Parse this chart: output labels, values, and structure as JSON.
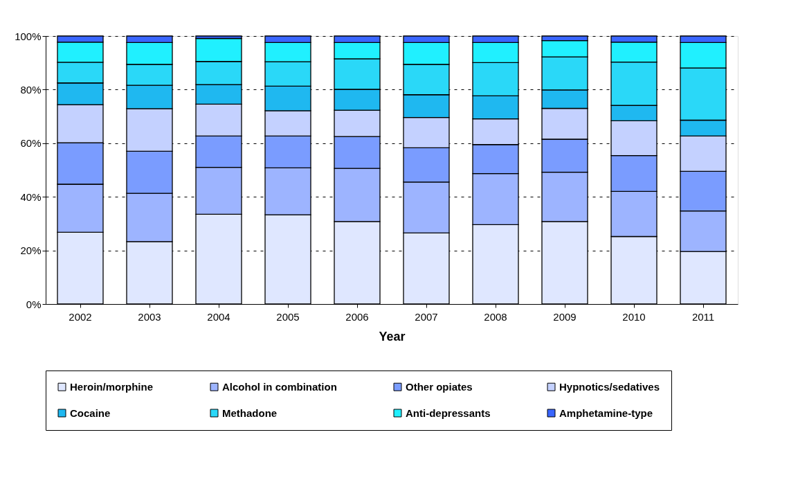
{
  "chart_data": {
    "type": "bar",
    "stacked": true,
    "xlabel": "Year",
    "categories": [
      "2002",
      "2003",
      "2004",
      "2005",
      "2006",
      "2007",
      "2008",
      "2009",
      "2010",
      "2011"
    ],
    "series": [
      {
        "name": "Heroin/morphine",
        "color": "#dfe7ff",
        "values": [
          26.8,
          23.3,
          33.5,
          33.3,
          30.8,
          26.5,
          29.6,
          30.8,
          25.2,
          19.6
        ]
      },
      {
        "name": "Alcohol in combination",
        "color": "#9db4ff",
        "values": [
          17.9,
          18.0,
          17.5,
          17.5,
          19.8,
          19.0,
          19.1,
          18.4,
          16.8,
          15.1
        ]
      },
      {
        "name": "Other opiates",
        "color": "#7a9cff",
        "values": [
          15.5,
          15.7,
          11.7,
          11.9,
          11.9,
          12.8,
          10.8,
          12.3,
          13.4,
          14.8
        ]
      },
      {
        "name": "Hypnotics/sedatives",
        "color": "#c4d1ff",
        "values": [
          14.2,
          15.9,
          11.9,
          9.4,
          9.8,
          11.3,
          9.6,
          11.5,
          13.0,
          13.2
        ]
      },
      {
        "name": "Cocaine",
        "color": "#1fb8f0",
        "values": [
          8.1,
          8.7,
          7.3,
          9.2,
          7.8,
          8.5,
          8.6,
          6.9,
          5.7,
          5.9
        ]
      },
      {
        "name": "Methadone",
        "color": "#2ad8f8",
        "values": [
          7.7,
          7.8,
          8.6,
          9.1,
          11.4,
          11.3,
          12.4,
          12.3,
          16.2,
          19.5
        ]
      },
      {
        "name": "Anti-depressants",
        "color": "#20f0ff",
        "values": [
          7.5,
          8.2,
          8.6,
          7.2,
          6.1,
          8.2,
          7.5,
          6.1,
          7.4,
          9.5
        ]
      },
      {
        "name": "Amphetamine-type",
        "color": "#3a66ff",
        "values": [
          2.3,
          2.4,
          0.9,
          2.4,
          2.4,
          2.4,
          2.4,
          1.7,
          2.3,
          2.4
        ]
      }
    ],
    "ylim": [
      0,
      100
    ],
    "yticks": [
      {
        "value": 0,
        "label": "0%"
      },
      {
        "value": 20,
        "label": "20%"
      },
      {
        "value": 40,
        "label": "40%"
      },
      {
        "value": 60,
        "label": "60%"
      },
      {
        "value": 80,
        "label": "80%"
      },
      {
        "value": 100,
        "label": "100%"
      }
    ],
    "grid": "y",
    "legend": "bottom"
  }
}
